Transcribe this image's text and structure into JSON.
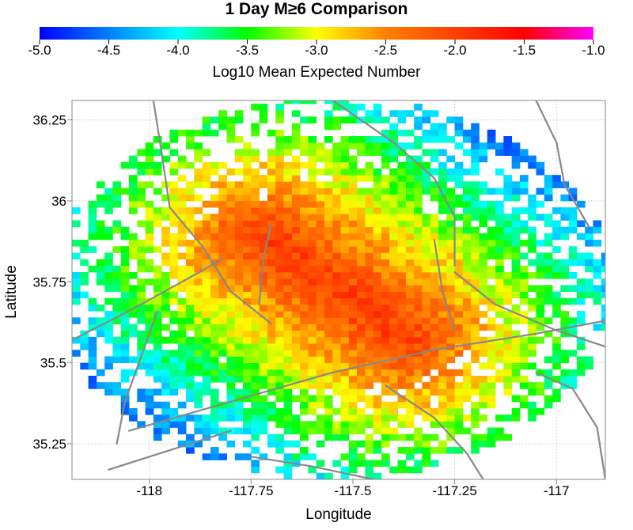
{
  "chart_data": {
    "type": "heatmap",
    "title": "1 Day M≥6 Comparison",
    "xlabel": "Longitude",
    "ylabel": "Latitude",
    "xlim": [
      -118.19,
      -116.88
    ],
    "ylim": [
      35.14,
      36.31
    ],
    "x_ticks": [
      {
        "value": -118,
        "label": "-118"
      },
      {
        "value": -117.75,
        "label": "-117.75"
      },
      {
        "value": -117.5,
        "label": "-117.5"
      },
      {
        "value": -117.25,
        "label": "-117.25"
      },
      {
        "value": -117,
        "label": "-117"
      }
    ],
    "y_ticks": [
      {
        "value": 35.25,
        "label": "35.25"
      },
      {
        "value": 35.5,
        "label": "35.5"
      },
      {
        "value": 35.75,
        "label": "35.75"
      },
      {
        "value": 36,
        "label": "36"
      },
      {
        "value": 36.25,
        "label": "36.25"
      }
    ],
    "grid": true,
    "colorbar": {
      "label": "Log10 Mean Expected Number",
      "range": [
        -5.0,
        -1.0
      ],
      "position": "top",
      "ticks": [
        {
          "value": -5.0,
          "label": "-5.0"
        },
        {
          "value": -4.5,
          "label": "-4.5"
        },
        {
          "value": -4.0,
          "label": "-4.0"
        },
        {
          "value": -3.5,
          "label": "-3.5"
        },
        {
          "value": -3.0,
          "label": "-3.0"
        },
        {
          "value": -2.5,
          "label": "-2.5"
        },
        {
          "value": -2.0,
          "label": "-2.0"
        },
        {
          "value": -1.5,
          "label": "-1.5"
        },
        {
          "value": -1.0,
          "label": "-1.0"
        }
      ],
      "colormap": [
        "#0000ff",
        "#00ffff",
        "#00ff00",
        "#ffff00",
        "#ff8000",
        "#ff0000",
        "#ff00ff"
      ]
    },
    "cell_size_deg": 0.02,
    "field": {
      "background_log10": -5.0,
      "peak_log10": -1.85,
      "main_trend_from": [
        -117.72,
        35.89
      ],
      "main_trend_to": [
        -117.37,
        35.58
      ],
      "secondary_zone_lon": -117.3,
      "secondary_zone_lat_range": [
        35.62,
        35.9
      ],
      "secondary_zone_log10": -2.5,
      "sparse_extent_lon": [
        -118.15,
        -116.88
      ],
      "sparse_extent_lat": [
        35.15,
        36.29
      ]
    },
    "faults": [
      [
        [
          -118.19,
          35.57
        ],
        [
          -118.05,
          35.66
        ],
        [
          -117.92,
          35.75
        ],
        [
          -117.82,
          35.82
        ]
      ],
      [
        [
          -118.05,
          35.29
        ],
        [
          -117.8,
          35.38
        ],
        [
          -117.55,
          35.47
        ],
        [
          -117.3,
          35.54
        ],
        [
          -117.05,
          35.59
        ],
        [
          -116.88,
          35.63
        ]
      ],
      [
        [
          -118.1,
          35.17
        ],
        [
          -117.95,
          35.23
        ],
        [
          -117.8,
          35.29
        ]
      ],
      [
        [
          -117.99,
          36.31
        ],
        [
          -117.97,
          36.15
        ],
        [
          -117.95,
          35.98
        ],
        [
          -117.87,
          35.86
        ],
        [
          -117.8,
          35.72
        ],
        [
          -117.7,
          35.62
        ]
      ],
      [
        [
          -117.55,
          36.31
        ],
        [
          -117.4,
          36.18
        ],
        [
          -117.3,
          36.07
        ],
        [
          -117.25,
          35.95
        ],
        [
          -117.25,
          35.8
        ]
      ],
      [
        [
          -117.3,
          35.88
        ],
        [
          -117.28,
          35.72
        ],
        [
          -117.25,
          35.6
        ]
      ],
      [
        [
          -117.05,
          36.31
        ],
        [
          -117.0,
          36.18
        ],
        [
          -116.98,
          36.05
        ],
        [
          -116.92,
          35.92
        ]
      ],
      [
        [
          -117.25,
          35.78
        ],
        [
          -117.15,
          35.68
        ],
        [
          -117.0,
          35.6
        ],
        [
          -116.88,
          35.55
        ]
      ],
      [
        [
          -117.42,
          35.43
        ],
        [
          -117.3,
          35.33
        ],
        [
          -117.22,
          35.22
        ],
        [
          -117.18,
          35.14
        ]
      ],
      [
        [
          -117.75,
          35.21
        ],
        [
          -117.6,
          35.18
        ],
        [
          -117.45,
          35.14
        ]
      ],
      [
        [
          -117.05,
          35.47
        ],
        [
          -116.96,
          35.42
        ],
        [
          -116.9,
          35.3
        ],
        [
          -116.88,
          35.14
        ]
      ],
      [
        [
          -117.7,
          35.93
        ],
        [
          -117.72,
          35.82
        ],
        [
          -117.73,
          35.68
        ]
      ],
      [
        [
          -118.08,
          35.25
        ],
        [
          -118.06,
          35.38
        ],
        [
          -118.02,
          35.52
        ],
        [
          -117.98,
          35.66
        ]
      ]
    ]
  }
}
